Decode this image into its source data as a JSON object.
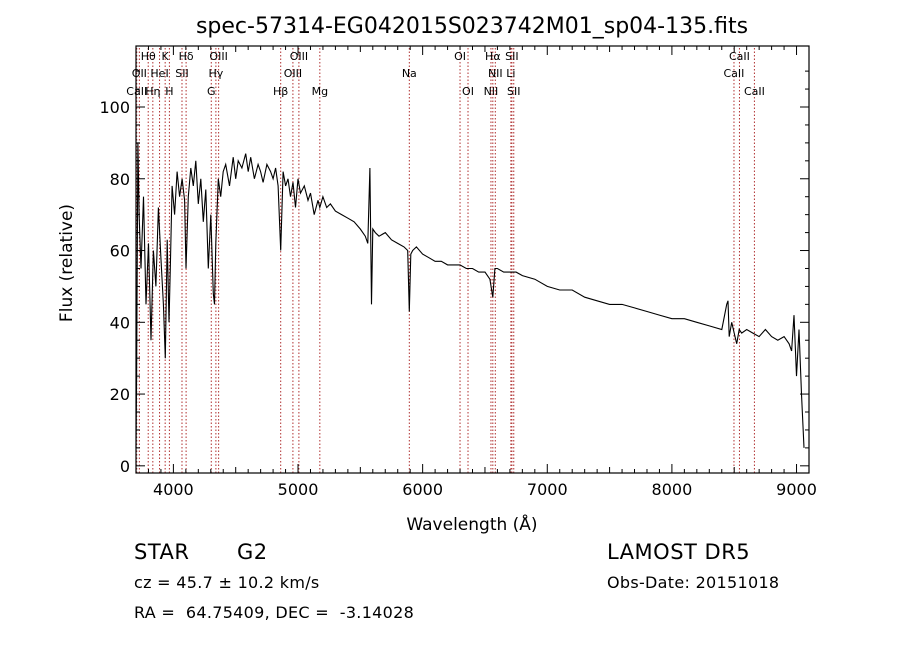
{
  "chart_data": {
    "type": "line",
    "title": "spec-57314-EG042015S023742M01_sp04-135.fits",
    "xlabel": "Wavelength (Å)",
    "ylabel": "Flux (relative)",
    "xlim": [
      3700,
      9100
    ],
    "ylim": [
      -2,
      117
    ],
    "xticks": [
      "4000",
      "5000",
      "6000",
      "7000",
      "8000",
      "9000"
    ],
    "yticks": [
      "0",
      "20",
      "40",
      "60",
      "80",
      "100"
    ],
    "grid": false,
    "series": [
      {
        "x": [
          3700,
          3705,
          3715,
          3725,
          3740,
          3760,
          3780,
          3800,
          3820,
          3840,
          3860,
          3880,
          3900,
          3920,
          3935,
          3950,
          3965,
          3975,
          3990,
          4010,
          4030,
          4050,
          4070,
          4090,
          4101,
          4120,
          4140,
          4160,
          4180,
          4200,
          4220,
          4240,
          4260,
          4280,
          4300,
          4320,
          4330,
          4340,
          4360,
          4380,
          4400,
          4420,
          4450,
          4480,
          4500,
          4520,
          4550,
          4580,
          4600,
          4620,
          4650,
          4680,
          4700,
          4720,
          4750,
          4780,
          4800,
          4820,
          4840,
          4861,
          4880,
          4900,
          4920,
          4940,
          4960,
          4980,
          5000,
          5020,
          5050,
          5080,
          5100,
          5130,
          5160,
          5175,
          5200,
          5230,
          5260,
          5300,
          5350,
          5400,
          5450,
          5500,
          5540,
          5560,
          5577,
          5590,
          5600,
          5620,
          5650,
          5700,
          5750,
          5800,
          5850,
          5880,
          5893,
          5905,
          5920,
          5950,
          6000,
          6050,
          6100,
          6150,
          6200,
          6250,
          6300,
          6350,
          6400,
          6450,
          6500,
          6540,
          6563,
          6580,
          6600,
          6650,
          6700,
          6750,
          6800,
          6900,
          7000,
          7100,
          7200,
          7300,
          7400,
          7500,
          7600,
          7700,
          7800,
          7900,
          8000,
          8100,
          8200,
          8300,
          8400,
          8440,
          8450,
          8460,
          8480,
          8500,
          8520,
          8540,
          8560,
          8600,
          8650,
          8700,
          8750,
          8800,
          8850,
          8900,
          8940,
          8960,
          8980,
          9000,
          9020,
          9040,
          9060
        ],
        "values": [
          5,
          25,
          90,
          70,
          55,
          75,
          45,
          62,
          35,
          60,
          50,
          72,
          58,
          45,
          30,
          63,
          40,
          55,
          78,
          70,
          82,
          75,
          80,
          74,
          55,
          75,
          83,
          78,
          85,
          73,
          80,
          68,
          77,
          55,
          70,
          48,
          45,
          62,
          80,
          75,
          82,
          84,
          78,
          86,
          80,
          85,
          83,
          87,
          82,
          86,
          80,
          84,
          82,
          79,
          84,
          82,
          80,
          83,
          78,
          60,
          82,
          78,
          80,
          75,
          79,
          72,
          80,
          76,
          78,
          74,
          76,
          70,
          74,
          72,
          75,
          72,
          73,
          71,
          70,
          69,
          68,
          66,
          64,
          62,
          83,
          45,
          66,
          65,
          64,
          65,
          63,
          62,
          61,
          60,
          43,
          59,
          60,
          61,
          59,
          58,
          57,
          57,
          56,
          56,
          56,
          55,
          55,
          54,
          54,
          52,
          47,
          55,
          55,
          54,
          54,
          54,
          53,
          52,
          50,
          49,
          49,
          47,
          46,
          45,
          45,
          44,
          43,
          42,
          41,
          41,
          40,
          39,
          38,
          45,
          46,
          36,
          40,
          37,
          34,
          38,
          37,
          38,
          37,
          36,
          38,
          36,
          35,
          36,
          34,
          32,
          42,
          25,
          38,
          20,
          5
        ]
      }
    ],
    "lines": [
      {
        "label": "CaII",
        "x": 3706,
        "row": 2
      },
      {
        "label": "OII",
        "x": 3727,
        "row": 1
      },
      {
        "label": "Hθ",
        "x": 3798,
        "row": 0
      },
      {
        "label": "Hη",
        "x": 3835,
        "row": 2
      },
      {
        "label": "HeI",
        "x": 3889,
        "row": 1
      },
      {
        "label": "K",
        "x": 3934,
        "row": 0
      },
      {
        "label": "H",
        "x": 3968,
        "row": 2
      },
      {
        "label": "SII",
        "x": 4069,
        "row": 1
      },
      {
        "label": "Hδ",
        "x": 4102,
        "row": 0
      },
      {
        "label": "G",
        "x": 4304,
        "row": 2
      },
      {
        "label": "Hγ",
        "x": 4341,
        "row": 1
      },
      {
        "label": "OIII",
        "x": 4363,
        "row": 0
      },
      {
        "label": "Hβ",
        "x": 4861,
        "row": 2
      },
      {
        "label": "OIII",
        "x": 4959,
        "row": 1
      },
      {
        "label": "OIII",
        "x": 5007,
        "row": 0
      },
      {
        "label": "Mg",
        "x": 5175,
        "row": 2
      },
      {
        "label": "Na",
        "x": 5893,
        "row": 1
      },
      {
        "label": "OI",
        "x": 6300,
        "row": 0
      },
      {
        "label": "OI",
        "x": 6364,
        "row": 2
      },
      {
        "label": "NII",
        "x": 6548,
        "row": 2
      },
      {
        "label": "Hα",
        "x": 6563,
        "row": 0
      },
      {
        "label": "NII",
        "x": 6583,
        "row": 1
      },
      {
        "label": "Li",
        "x": 6708,
        "row": 1
      },
      {
        "label": "SII",
        "x": 6716,
        "row": 0
      },
      {
        "label": "SII",
        "x": 6731,
        "row": 2
      },
      {
        "label": "CaII",
        "x": 8498,
        "row": 1
      },
      {
        "label": "CaII",
        "x": 8542,
        "row": 0
      },
      {
        "label": "CaII",
        "x": 8662,
        "row": 2
      }
    ]
  },
  "info": {
    "class_label": "STAR",
    "subclass_label": "G2",
    "survey": "LAMOST DR5",
    "cz": "cz = 45.7 ± 10.2 km/s",
    "obs_date": "Obs-Date: 20151018",
    "coords": "RA =  64.75409, DEC =  -3.14028"
  }
}
